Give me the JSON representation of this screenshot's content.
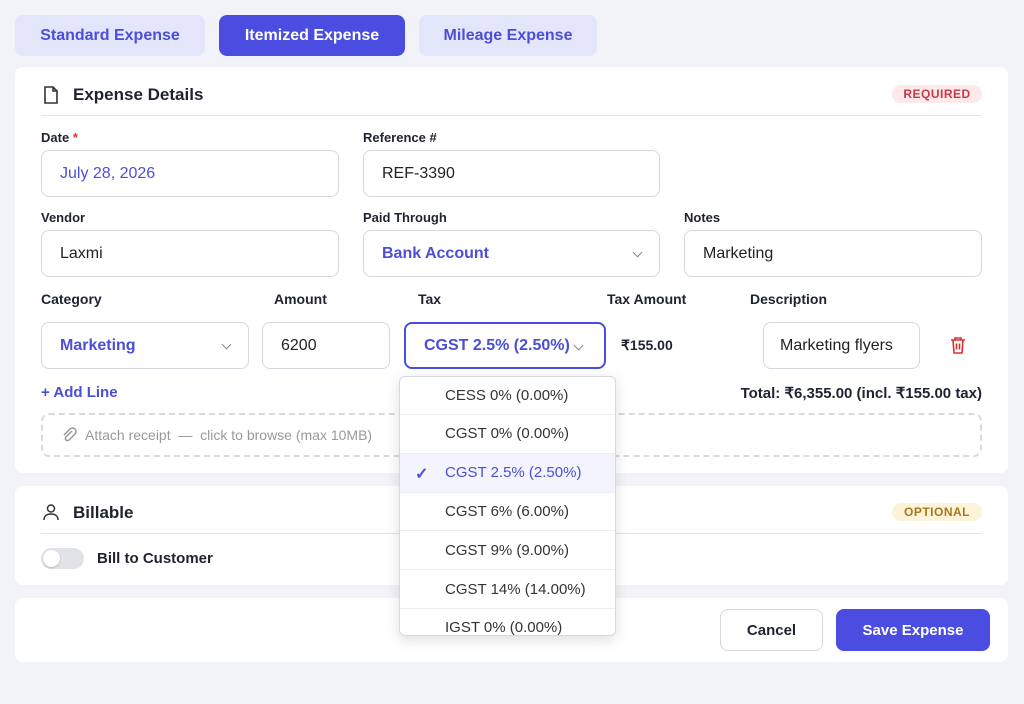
{
  "tabs": [
    "Standard Expense",
    "Itemized Expense",
    "Mileage Expense"
  ],
  "details": {
    "title": "Expense Details",
    "badge": "REQUIRED",
    "date_label": "Date",
    "required_mark": "*",
    "date": "July 28, 2026",
    "ref_label": "Reference #",
    "ref": "REF-3390",
    "vendor_label": "Vendor",
    "vendor": "Laxmi",
    "paid_label": "Paid Through",
    "paid": "Bank Account",
    "notes_label": "Notes",
    "notes": "Marketing",
    "columns": [
      "Category",
      "Amount",
      "Tax",
      "Tax Amount",
      "Description"
    ],
    "line": {
      "category": "Marketing",
      "amount": "6200",
      "tax": "CGST 2.5% (2.50%)",
      "tax_amount": "₹155.00",
      "description": "Marketing flyers"
    },
    "add_line": "+ Add Line",
    "total": "Total: ₹6,355.00 (incl. ₹155.00 tax)",
    "attach": "Attach receipt  —  click to browse (max 10MB)"
  },
  "billable": {
    "title": "Billable",
    "badge": "OPTIONAL",
    "toggle": "Bill to Customer"
  },
  "actions": {
    "cancel": "Cancel",
    "save": "Save Expense"
  },
  "dropdown": {
    "options": [
      "CESS 0% (0.00%)",
      "CGST 0% (0.00%)",
      "CGST 2.5% (2.50%)",
      "CGST 6% (6.00%)",
      "CGST 9% (9.00%)",
      "CGST 14% (14.00%)",
      "IGST 0% (0.00%)"
    ],
    "selected": 2
  }
}
